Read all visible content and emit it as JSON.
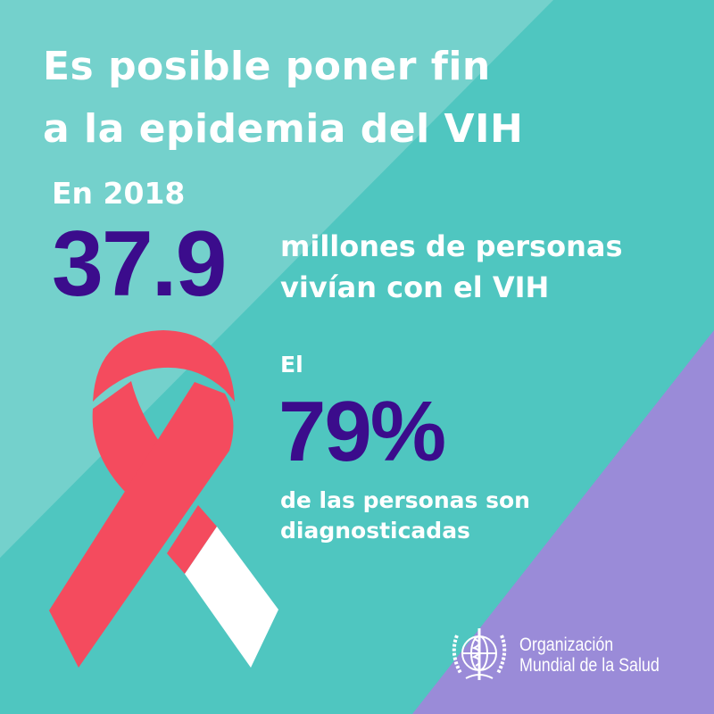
{
  "colors": {
    "background_teal": "#4fc6c0",
    "background_light_teal": "#74d1cc",
    "background_purple": "#9a8bd8",
    "number_purple": "#3b0c8c",
    "ribbon_red": "#f44b5e",
    "ribbon_white": "#ffffff"
  },
  "headline": {
    "line1": "Es posible poner fin",
    "line2": "a la epidemia del VIH"
  },
  "stat1": {
    "intro": "En 2018",
    "value": "37.9",
    "desc_line1": "millones de personas",
    "desc_line2": "vivían con el VIH"
  },
  "stat2": {
    "intro": "El",
    "value": "79%",
    "desc_line1": "de las personas son",
    "desc_line2": "diagnosticadas"
  },
  "illustration": {
    "icon": "awareness-ribbon-icon",
    "diagnosed_fraction": 0.79
  },
  "logo": {
    "icon": "who-emblem-icon",
    "line1": "Organización",
    "line2": "Mundial de la Salud"
  }
}
